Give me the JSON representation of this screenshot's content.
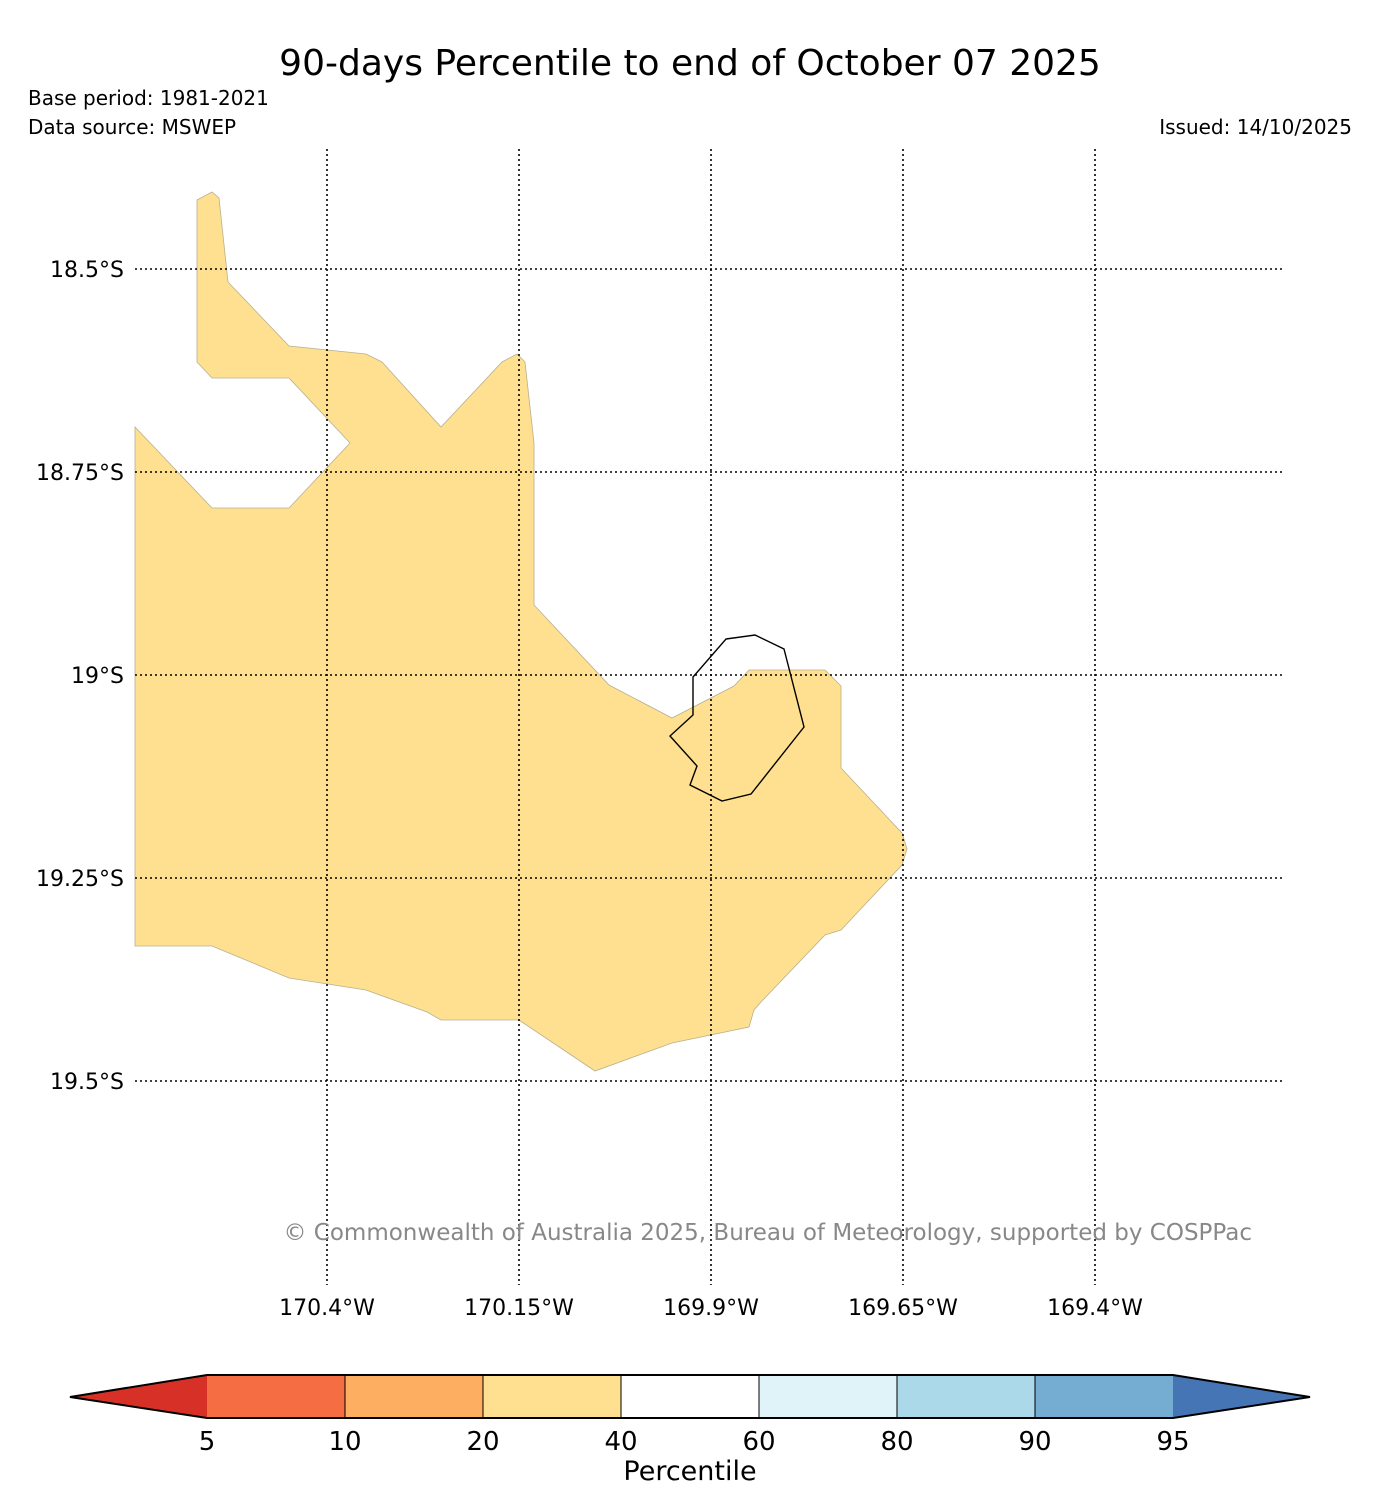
{
  "header": {
    "title": "90-days Percentile to end of October 07 2025",
    "base_period": "Base period: 1981-2021",
    "data_source": "Data source: MSWEP",
    "issued": "Issued: 14/10/2025"
  },
  "map": {
    "lat_ticks": [
      "18.5°S",
      "18.75°S",
      "19°S",
      "19.25°S",
      "19.5°S"
    ],
    "lon_ticks": [
      "170.4°W",
      "170.15°W",
      "169.9°W",
      "169.65°W",
      "169.4°W"
    ],
    "gridlines": "dotted",
    "fill_category": "20-40",
    "fill_color": "#fee090",
    "outline_color": "#000000",
    "copyright": "© Commonwealth of Australia 2025, Bureau of Meteorology, supported by COSPPac"
  },
  "colorbar": {
    "label": "Percentile",
    "ticks": [
      "5",
      "10",
      "20",
      "40",
      "60",
      "80",
      "90",
      "95"
    ],
    "colors": {
      "below_5": "#d73027",
      "5_10": "#f46d43",
      "10_20": "#fdae61",
      "20_40": "#fee090",
      "40_60": "#ffffff",
      "60_80": "#e0f3f8",
      "80_90": "#abd9e9",
      "90_95": "#74add1",
      "above_95": "#4575b4"
    }
  }
}
